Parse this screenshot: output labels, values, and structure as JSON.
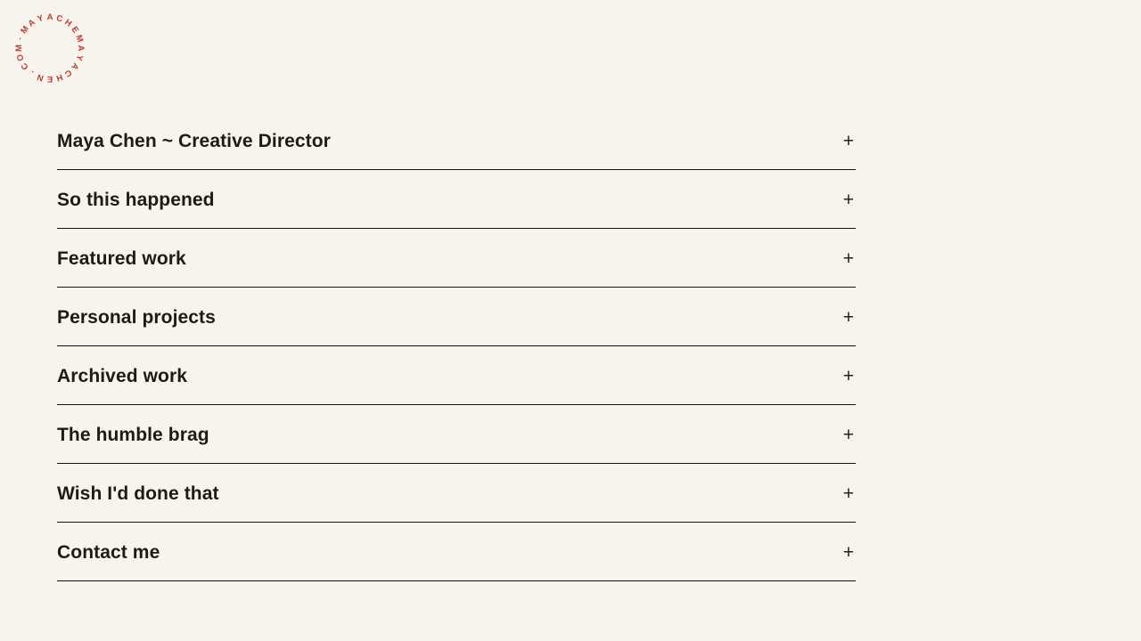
{
  "logo": {
    "circular_text": "MAYACHEMAYACHEN.COM·",
    "color": "#c23a2b"
  },
  "accordion": {
    "items": [
      {
        "label": "Maya Chen ~ Creative Director",
        "toggle": "+"
      },
      {
        "label": "So this happened",
        "toggle": "+"
      },
      {
        "label": "Featured work",
        "toggle": "+"
      },
      {
        "label": "Personal projects",
        "toggle": "+"
      },
      {
        "label": "Archived work",
        "toggle": "+"
      },
      {
        "label": "The humble brag",
        "toggle": "+"
      },
      {
        "label": "Wish I'd done that",
        "toggle": "+"
      },
      {
        "label": "Contact me",
        "toggle": "+"
      }
    ]
  },
  "colors": {
    "background": "#f7f4ee",
    "text": "#1d1b16",
    "divider": "#15130d",
    "accent_red": "#c23a2b"
  }
}
